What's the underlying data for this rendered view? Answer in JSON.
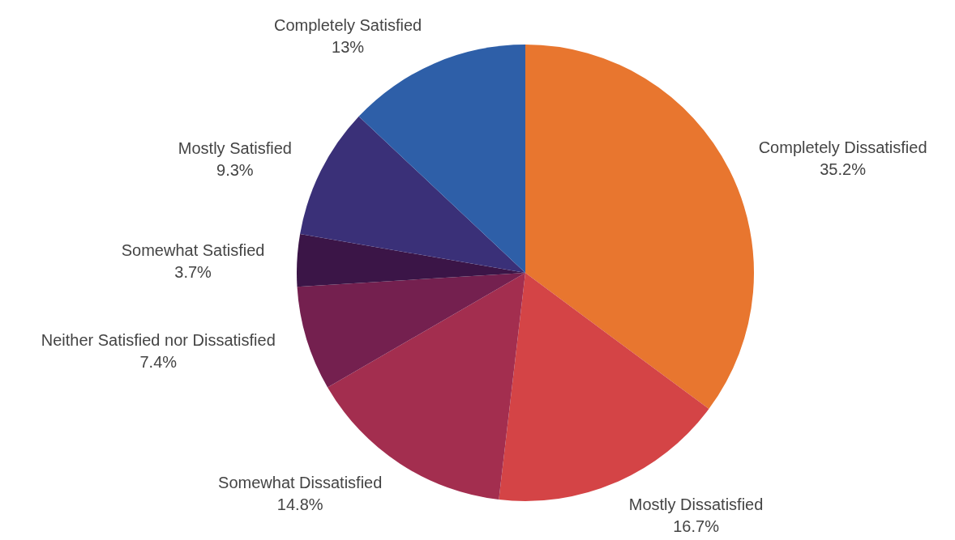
{
  "chart_data": {
    "type": "pie",
    "categories": [
      "Completely Dissatisfied",
      "Mostly Dissatisfied",
      "Somewhat Dissatisfied",
      "Neither Satisfied nor Dissatisfied",
      "Somewhat Satisfied",
      "Mostly Satisfied",
      "Completely Satisfied"
    ],
    "values": [
      35.2,
      16.7,
      14.8,
      7.4,
      3.7,
      9.3,
      13
    ],
    "value_labels": [
      "35.2%",
      "16.7%",
      "14.8%",
      "7.4%",
      "3.7%",
      "9.3%",
      "13%"
    ],
    "colors": [
      "#e8762f",
      "#d44446",
      "#a32e4f",
      "#74204f",
      "#3b1547",
      "#3a3078",
      "#2e5fa8"
    ]
  }
}
